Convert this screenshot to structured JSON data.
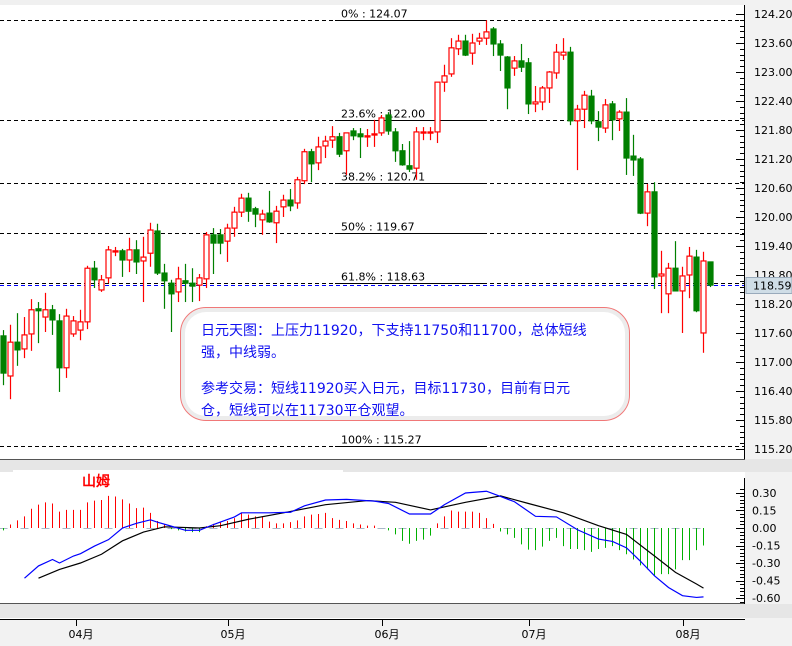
{
  "colors": {
    "up": "#ff0000",
    "down": "#008000",
    "hist_up": "#ff0000",
    "hist_down": "#00b000",
    "dif": "#0000ff",
    "dea": "#000000",
    "annotation_text": "#1010f0",
    "annotation_border": "#f07878",
    "price_tag_bg": "#cfdde6"
  },
  "brand_label": "山姆",
  "annotation": {
    "line1": "日元天图：上压力11920，下支持11750和11700，总体短线",
    "line2": "强，中线弱。",
    "line3": "参考交易：短线11920买入日元，目标11730，目前有日元",
    "line4": "仓，短线可以在11730平仓观望。"
  },
  "chart_data": [
    {
      "type": "candlestick",
      "ylim": [
        115.2,
        124.2
      ],
      "y_ticks": [
        "124.20",
        "123.60",
        "123.00",
        "122.40",
        "121.80",
        "121.20",
        "120.60",
        "120.00",
        "119.40",
        "118.80",
        "118.20",
        "117.60",
        "117.00",
        "116.40",
        "115.80",
        "115.20"
      ],
      "current_price": "118.59",
      "fib_levels": [
        {
          "label": "0%    : 124.07",
          "value": 124.07
        },
        {
          "label": "23.6% : 122.00",
          "value": 122.0
        },
        {
          "label": "38.2% : 120.71",
          "value": 120.71
        },
        {
          "label": "50%   : 119.67",
          "value": 119.67
        },
        {
          "label": "61.8% : 118.63",
          "value": 118.63
        },
        {
          "label": "100%  : 115.27",
          "value": 115.27
        }
      ],
      "x_ticks": [
        {
          "label": "04月",
          "index": 10.4
        },
        {
          "label": "05月",
          "index": 32
        },
        {
          "label": "06月",
          "index": 54
        },
        {
          "label": "07月",
          "index": 75
        },
        {
          "label": "08月",
          "index": 97
        }
      ],
      "ohlc": [
        [
          117.54,
          117.66,
          116.52,
          116.77
        ],
        [
          116.71,
          117.77,
          116.23,
          117.41
        ],
        [
          117.41,
          118.01,
          116.92,
          117.25
        ],
        [
          117.27,
          117.93,
          117.08,
          117.56
        ],
        [
          117.58,
          118.3,
          117.23,
          118.08
        ],
        [
          118.1,
          118.24,
          117.39,
          118.06
        ],
        [
          117.93,
          118.43,
          117.62,
          118.08
        ],
        [
          118.08,
          118.18,
          117.56,
          117.87
        ],
        [
          117.85,
          117.99,
          116.38,
          116.88
        ],
        [
          116.88,
          118.1,
          116.67,
          117.95
        ],
        [
          117.58,
          117.95,
          117.52,
          117.85
        ],
        [
          117.66,
          118.08,
          117.45,
          117.83
        ],
        [
          117.83,
          118.99,
          117.68,
          118.94
        ],
        [
          118.94,
          119.09,
          118.53,
          118.7
        ],
        [
          118.49,
          118.8,
          118.45,
          118.7
        ],
        [
          118.74,
          119.4,
          118.63,
          119.32
        ],
        [
          119.28,
          119.38,
          119.19,
          119.3
        ],
        [
          119.3,
          119.34,
          118.76,
          119.11
        ],
        [
          119.11,
          119.57,
          118.86,
          119.32
        ],
        [
          119.32,
          119.52,
          118.82,
          119.07
        ],
        [
          119.09,
          119.59,
          118.24,
          119.17
        ],
        [
          119.25,
          119.88,
          118.97,
          119.73
        ],
        [
          119.71,
          119.86,
          118.8,
          118.84
        ],
        [
          118.84,
          119.03,
          118.1,
          118.68
        ],
        [
          118.63,
          118.7,
          117.62,
          118.41
        ],
        [
          118.45,
          118.97,
          118.24,
          118.72
        ],
        [
          118.68,
          119.03,
          118.24,
          118.63
        ],
        [
          118.63,
          118.94,
          118.24,
          118.57
        ],
        [
          118.59,
          118.82,
          118.26,
          118.74
        ],
        [
          118.72,
          119.69,
          118.53,
          119.63
        ],
        [
          119.63,
          119.77,
          118.82,
          119.46
        ],
        [
          119.63,
          119.75,
          119.23,
          119.46
        ],
        [
          119.5,
          119.86,
          119.07,
          119.77
        ],
        [
          119.77,
          120.21,
          119.59,
          120.1
        ],
        [
          120.1,
          120.48,
          120.0,
          120.39
        ],
        [
          120.39,
          120.5,
          119.9,
          120.12
        ],
        [
          120.17,
          120.21,
          119.79,
          120.06
        ],
        [
          119.94,
          120.15,
          119.63,
          120.06
        ],
        [
          120.08,
          120.54,
          119.88,
          119.9
        ],
        [
          119.88,
          120.23,
          119.46,
          120.12
        ],
        [
          120.21,
          120.46,
          120.0,
          120.35
        ],
        [
          120.35,
          120.58,
          120.12,
          120.23
        ],
        [
          120.29,
          120.83,
          120.17,
          120.77
        ],
        [
          120.75,
          121.41,
          120.68,
          121.35
        ],
        [
          121.35,
          121.41,
          120.72,
          121.1
        ],
        [
          121.12,
          121.66,
          120.97,
          121.45
        ],
        [
          121.47,
          121.68,
          121.22,
          121.57
        ],
        [
          121.59,
          121.88,
          121.43,
          121.66
        ],
        [
          121.66,
          121.74,
          121.24,
          121.3
        ],
        [
          121.37,
          121.74,
          120.87,
          121.74
        ],
        [
          121.78,
          121.84,
          121.59,
          121.68
        ],
        [
          121.72,
          121.84,
          121.22,
          121.66
        ],
        [
          121.67,
          121.82,
          121.45,
          121.68
        ],
        [
          121.71,
          122.01,
          121.45,
          121.72
        ],
        [
          121.74,
          122.11,
          121.68,
          122.05
        ],
        [
          122.11,
          122.17,
          121.7,
          121.78
        ],
        [
          121.76,
          121.84,
          121.14,
          121.37
        ],
        [
          121.37,
          121.51,
          121.06,
          121.08
        ],
        [
          121.06,
          121.57,
          120.93,
          120.99
        ],
        [
          121.01,
          121.86,
          120.77,
          121.76
        ],
        [
          121.75,
          121.86,
          121.59,
          121.76
        ],
        [
          121.75,
          121.86,
          121.59,
          121.76
        ],
        [
          121.76,
          122.79,
          121.53,
          122.79
        ],
        [
          122.79,
          123.15,
          122.59,
          122.92
        ],
        [
          122.96,
          123.7,
          122.9,
          123.5
        ],
        [
          123.48,
          123.77,
          123.35,
          123.64
        ],
        [
          123.64,
          123.77,
          123.33,
          123.35
        ],
        [
          123.39,
          123.79,
          123.15,
          123.6
        ],
        [
          123.64,
          123.81,
          123.56,
          123.7
        ],
        [
          123.7,
          124.07,
          123.56,
          123.83
        ],
        [
          123.89,
          123.93,
          123.33,
          123.58
        ],
        [
          123.58,
          123.66,
          123.02,
          123.35
        ],
        [
          123.31,
          123.33,
          122.23,
          122.67
        ],
        [
          123.08,
          123.33,
          122.92,
          123.23
        ],
        [
          123.23,
          123.58,
          123.0,
          123.1
        ],
        [
          123.19,
          123.29,
          122.13,
          122.34
        ],
        [
          122.34,
          122.71,
          122.17,
          122.38
        ],
        [
          122.38,
          122.71,
          122.21,
          122.67
        ],
        [
          122.67,
          123.02,
          122.36,
          123.0
        ],
        [
          122.98,
          123.58,
          122.86,
          123.41
        ],
        [
          123.35,
          123.7,
          123.25,
          123.41
        ],
        [
          123.41,
          123.52,
          121.9,
          121.99
        ],
        [
          121.99,
          122.32,
          120.97,
          122.23
        ],
        [
          122.23,
          122.61,
          121.84,
          122.52
        ],
        [
          122.5,
          122.63,
          121.92,
          121.99
        ],
        [
          121.97,
          122.19,
          121.57,
          121.86
        ],
        [
          121.84,
          122.44,
          121.74,
          122.32
        ],
        [
          122.34,
          122.4,
          121.59,
          122.01
        ],
        [
          122.03,
          122.21,
          121.78,
          122.17
        ],
        [
          122.17,
          122.46,
          120.87,
          121.22
        ],
        [
          121.26,
          121.7,
          120.85,
          121.18
        ],
        [
          121.2,
          121.24,
          120.06,
          120.08
        ],
        [
          120.08,
          120.68,
          119.81,
          120.52
        ],
        [
          120.52,
          120.72,
          118.51,
          118.76
        ],
        [
          118.78,
          119.3,
          118.01,
          118.82
        ],
        [
          118.41,
          119.05,
          118.01,
          118.94
        ],
        [
          118.94,
          119.5,
          118.47,
          118.47
        ],
        [
          118.47,
          118.97,
          117.6,
          118.78
        ],
        [
          118.8,
          119.38,
          118.32,
          119.19
        ],
        [
          119.17,
          119.32,
          118.03,
          118.06
        ],
        [
          117.6,
          119.28,
          117.19,
          119.09
        ],
        [
          119.07,
          119.07,
          118.55,
          118.59
        ]
      ]
    },
    {
      "type": "macd",
      "ylim": [
        -0.65,
        0.38
      ],
      "y_ticks": [
        "0.30",
        "0.15",
        "0.00",
        "-0.15",
        "-0.30",
        "-0.45",
        "-0.60"
      ],
      "histogram": [
        -0.02,
        0.03,
        0.065,
        0.1,
        0.165,
        0.2,
        0.22,
        0.21,
        0.14,
        0.155,
        0.155,
        0.155,
        0.22,
        0.235,
        0.24,
        0.275,
        0.27,
        0.245,
        0.21,
        0.17,
        0.175,
        0.13,
        0.06,
        0.03,
        -0.01,
        -0.02,
        -0.03,
        -0.035,
        -0.035,
        0.015,
        0.035,
        0.05,
        0.06,
        0.085,
        0.13,
        0.115,
        0.1,
        0.095,
        0.055,
        0.04,
        0.04,
        0.05,
        0.065,
        0.1,
        0.115,
        0.12,
        0.13,
        0.085,
        0.07,
        0.06,
        0.04,
        0.03,
        0.02,
        0.02,
        0.0,
        -0.02,
        -0.055,
        -0.11,
        -0.135,
        -0.11,
        -0.1,
        -0.065,
        0.04,
        0.1,
        0.15,
        0.14,
        0.14,
        0.14,
        0.13,
        0.085,
        0.035,
        -0.03,
        -0.055,
        -0.085,
        -0.14,
        -0.185,
        -0.19,
        -0.16,
        -0.11,
        -0.085,
        -0.155,
        -0.18,
        -0.18,
        -0.19,
        -0.205,
        -0.18,
        -0.17,
        -0.155,
        -0.19,
        -0.225,
        -0.27,
        -0.32,
        -0.355,
        -0.41,
        -0.395,
        -0.395,
        -0.355,
        -0.275,
        -0.275,
        -0.19,
        -0.15
      ],
      "dif": [
        [
          3,
          -0.43
        ],
        [
          5,
          -0.325
        ],
        [
          7,
          -0.27
        ],
        [
          8,
          -0.3
        ],
        [
          10,
          -0.24
        ],
        [
          11,
          -0.22
        ],
        [
          13,
          -0.155
        ],
        [
          15,
          -0.1
        ],
        [
          17,
          0.0
        ],
        [
          19,
          0.04
        ],
        [
          21,
          0.07
        ],
        [
          22,
          0.05
        ],
        [
          24,
          0.015
        ],
        [
          26,
          -0.02
        ],
        [
          28,
          -0.02
        ],
        [
          30,
          0.03
        ],
        [
          33,
          0.095
        ],
        [
          34,
          0.13
        ],
        [
          38,
          0.13
        ],
        [
          41,
          0.135
        ],
        [
          43,
          0.19
        ],
        [
          46,
          0.24
        ],
        [
          49,
          0.245
        ],
        [
          53,
          0.23
        ],
        [
          55,
          0.21
        ],
        [
          58,
          0.12
        ],
        [
          61,
          0.12
        ],
        [
          63,
          0.2
        ],
        [
          66,
          0.3
        ],
        [
          69,
          0.315
        ],
        [
          71,
          0.27
        ],
        [
          73,
          0.225
        ],
        [
          76,
          0.1
        ],
        [
          79,
          0.095
        ],
        [
          82,
          -0.015
        ],
        [
          85,
          -0.095
        ],
        [
          87,
          -0.115
        ],
        [
          89,
          -0.17
        ],
        [
          91,
          -0.285
        ],
        [
          93,
          -0.41
        ],
        [
          95,
          -0.51
        ],
        [
          97,
          -0.58
        ],
        [
          99,
          -0.595
        ],
        [
          100,
          -0.59
        ]
      ],
      "dea": [
        [
          5,
          -0.43
        ],
        [
          8,
          -0.355
        ],
        [
          11,
          -0.3
        ],
        [
          14,
          -0.225
        ],
        [
          17,
          -0.11
        ],
        [
          20,
          -0.035
        ],
        [
          23,
          0.01
        ],
        [
          28,
          0.0
        ],
        [
          31,
          0.02
        ],
        [
          35,
          0.075
        ],
        [
          40,
          0.13
        ],
        [
          46,
          0.2
        ],
        [
          52,
          0.235
        ],
        [
          56,
          0.22
        ],
        [
          61,
          0.155
        ],
        [
          66,
          0.22
        ],
        [
          71,
          0.275
        ],
        [
          75,
          0.21
        ],
        [
          80,
          0.13
        ],
        [
          85,
          0.02
        ],
        [
          89,
          -0.055
        ],
        [
          93,
          -0.24
        ],
        [
          96,
          -0.38
        ],
        [
          99,
          -0.48
        ],
        [
          100,
          -0.515
        ]
      ]
    }
  ]
}
